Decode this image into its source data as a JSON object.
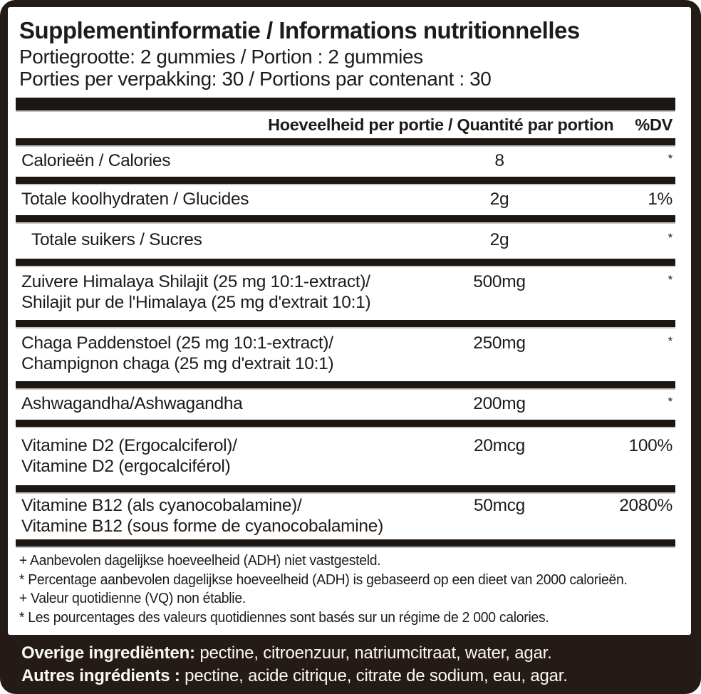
{
  "panel": {
    "title": "Supplementinformatie / Informations nutritionnelles",
    "serving_size": "Portiegrootte: 2 gummies / Portion : 2 gummies",
    "servings_per_container": "Porties per verpakking: 30 / Portions par contenant : 30",
    "column_header": "Hoeveelheid per portie / Quantité par portion",
    "dv_header": "%DV",
    "rows": [
      {
        "name": "Calorieën / Calories",
        "amount": "8",
        "dv": "*"
      },
      {
        "name": "Totale koolhydraten / Glucides",
        "amount": "2g",
        "dv": "1%"
      },
      {
        "name": "Totale suikers / Sucres",
        "amount": "2g",
        "dv": "*"
      },
      {
        "name": "Zuivere Himalaya Shilajit (25 mg 10:1-extract)/",
        "name2": "Shilajit pur de l'Himalaya (25 mg d'extrait 10:1)",
        "amount": "500mg",
        "dv": "*"
      },
      {
        "name": "Chaga Paddenstoel (25 mg 10:1-extract)/",
        "name2": "Champignon chaga (25 mg d'extrait 10:1)",
        "amount": "250mg",
        "dv": "*"
      },
      {
        "name": "Ashwagandha/Ashwagandha",
        "amount": "200mg",
        "dv": "*"
      },
      {
        "name": "Vitamine D2 (Ergocalciferol)/",
        "name2": "Vitamine D2 (ergocalciférol)",
        "amount": "20mcg",
        "dv": "100%"
      },
      {
        "name": "Vitamine B12 (als cyanocobalamine)/",
        "name2": "Vitamine B12 (sous forme de cyanocobalamine)",
        "amount": "50mcg",
        "dv": "2080%"
      }
    ],
    "footnotes": [
      "+ Aanbevolen dagelijkse hoeveelheid (ADH) niet vastgesteld.",
      "* Percentage aanbevolen dagelijkse hoeveelheid (ADH) is gebaseerd op een dieet van 2000 calorieën.",
      "+ Valeur quotidienne (VQ) non établie.",
      "* Les pourcentages des valeurs quotidiennes sont basés sur un régime de 2 000 calories."
    ]
  },
  "ingredients": {
    "line1_label": "Overige ingrediënten:",
    "line1_text": " pectine, citroenzuur, natriumcitraat, water, agar.",
    "line2_label": "Autres ingrédients :",
    "line2_text": " pectine, acide citrique, citrate de sodium, eau, agar."
  },
  "colors": {
    "background": "#241b16",
    "panel": "#ffffff",
    "bar": "#1c1713",
    "text": "#1e1b19",
    "ingredients_text": "#faf8f7"
  }
}
